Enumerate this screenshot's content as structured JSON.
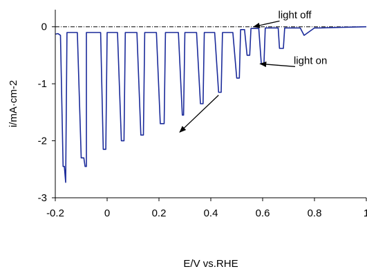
{
  "chart_data": {
    "type": "line",
    "xlabel": "E/V vs.RHE",
    "ylabel": "i/mA·cm-2",
    "xlim": [
      -0.2,
      1.0
    ],
    "ylim": [
      -3,
      0.3
    ],
    "xticks": [
      -0.2,
      0,
      0.2,
      0.4,
      0.6,
      0.8,
      1
    ],
    "xtick_labels": [
      "-0.2",
      "0",
      "0.2",
      "0.4",
      "0.6",
      "0.8",
      "1"
    ],
    "yticks": [
      0,
      -1,
      -2,
      -3
    ],
    "ytick_labels": [
      "0",
      "-1",
      "-2",
      "-3"
    ],
    "grid": false,
    "reference_line": {
      "y": 0,
      "style": "dash-dot"
    },
    "series": [
      {
        "color": "#1a2a9a",
        "x": [
          -0.2,
          -0.19,
          -0.19,
          -0.18,
          -0.17,
          -0.165,
          -0.16,
          -0.16,
          -0.155,
          -0.12,
          -0.115,
          -0.115,
          -0.1,
          -0.09,
          -0.085,
          -0.08,
          -0.08,
          -0.075,
          -0.03,
          -0.025,
          -0.025,
          -0.015,
          -0.005,
          -0.005,
          0.0,
          0.035,
          0.04,
          0.04,
          0.055,
          0.065,
          0.065,
          0.07,
          0.11,
          0.115,
          0.115,
          0.13,
          0.14,
          0.14,
          0.145,
          0.185,
          0.19,
          0.19,
          0.205,
          0.22,
          0.22,
          0.225,
          0.27,
          0.275,
          0.275,
          0.29,
          0.295,
          0.295,
          0.3,
          0.34,
          0.345,
          0.345,
          0.36,
          0.37,
          0.37,
          0.375,
          0.41,
          0.415,
          0.415,
          0.43,
          0.44,
          0.44,
          0.445,
          0.48,
          0.485,
          0.485,
          0.5,
          0.51,
          0.51,
          0.515,
          0.525,
          0.53,
          0.53,
          0.54,
          0.55,
          0.55,
          0.555,
          0.58,
          0.585,
          0.585,
          0.595,
          0.605,
          0.605,
          0.61,
          0.655,
          0.66,
          0.66,
          0.665,
          0.68,
          0.68,
          0.685,
          0.74,
          0.745,
          0.745,
          0.76,
          0.76,
          0.8,
          0.82,
          0.9,
          1.0
        ],
        "values": [
          -0.13,
          -0.12,
          -0.12,
          -0.15,
          -2.45,
          -2.45,
          -2.73,
          -2.73,
          -0.1,
          -0.1,
          -0.1,
          -0.1,
          -2.3,
          -2.3,
          -2.45,
          -2.45,
          -0.1,
          -0.1,
          -0.1,
          -0.1,
          -0.1,
          -2.15,
          -2.15,
          -2.15,
          -0.1,
          -0.1,
          -0.1,
          -0.1,
          -2.0,
          -2.0,
          -2.0,
          -0.1,
          -0.1,
          -0.1,
          -0.1,
          -1.9,
          -1.9,
          -1.9,
          -0.1,
          -0.1,
          -0.1,
          -0.1,
          -1.7,
          -1.7,
          -1.7,
          -0.1,
          -0.1,
          -0.1,
          -0.1,
          -1.55,
          -1.55,
          -1.55,
          -0.1,
          -0.1,
          -0.1,
          -0.1,
          -1.35,
          -1.35,
          -1.35,
          -0.1,
          -0.1,
          -0.1,
          -0.1,
          -1.15,
          -1.15,
          -1.15,
          -0.1,
          -0.1,
          -0.1,
          -0.1,
          -0.9,
          -0.9,
          -0.9,
          -0.05,
          -0.05,
          -0.05,
          -0.05,
          -0.5,
          -0.5,
          -0.5,
          -0.03,
          -0.03,
          -0.03,
          -0.03,
          -0.65,
          -0.65,
          -0.65,
          -0.02,
          -0.02,
          -0.02,
          -0.02,
          -0.38,
          -0.38,
          -0.38,
          -0.02,
          -0.02,
          -0.02,
          -0.02,
          -0.15,
          -0.15,
          -0.02,
          -0.02,
          -0.01,
          0.0
        ]
      }
    ],
    "annotations": [
      {
        "text": "light off",
        "x": 0.66,
        "y": 0.15,
        "arrow_to": [
          0.565,
          0.0
        ]
      },
      {
        "text": "light on",
        "x": 0.72,
        "y": -0.65,
        "arrow_to": [
          0.59,
          -0.65
        ]
      },
      {
        "text": "",
        "x": 0.43,
        "y": -1.2,
        "arrow_to": [
          0.28,
          -1.85
        ]
      }
    ]
  }
}
